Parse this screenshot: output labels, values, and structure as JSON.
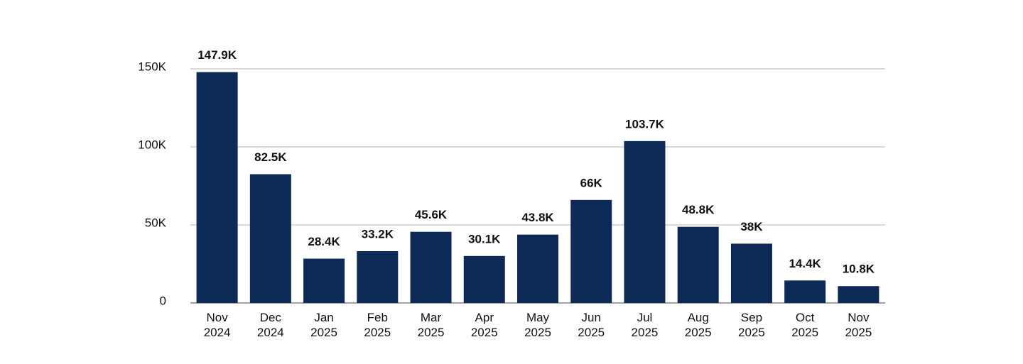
{
  "chart_data": {
    "type": "bar",
    "categories": [
      "Nov 2024",
      "Dec 2024",
      "Jan 2025",
      "Feb 2025",
      "Mar 2025",
      "Apr 2025",
      "May 2025",
      "Jun 2025",
      "Jul 2025",
      "Aug 2025",
      "Sep 2025",
      "Oct 2025",
      "Nov 2025"
    ],
    "values": [
      147900,
      82500,
      28400,
      33200,
      45600,
      30100,
      43800,
      66000,
      103700,
      48800,
      38000,
      14400,
      10800
    ],
    "value_labels": [
      "147.9K",
      "82.5K",
      "28.4K",
      "33.2K",
      "45.6K",
      "30.1K",
      "43.8K",
      "66K",
      "103.7K",
      "48.8K",
      "38K",
      "14.4K",
      "10.8K"
    ],
    "color": "#0d2a57",
    "ylim": [
      0,
      150000
    ],
    "yticks": [
      0,
      {
        "value": 50000,
        "label": "50K"
      },
      {
        "value": 100000,
        "label": "100K"
      },
      {
        "value": 150000,
        "label": "150K"
      }
    ],
    "grid": true
  }
}
